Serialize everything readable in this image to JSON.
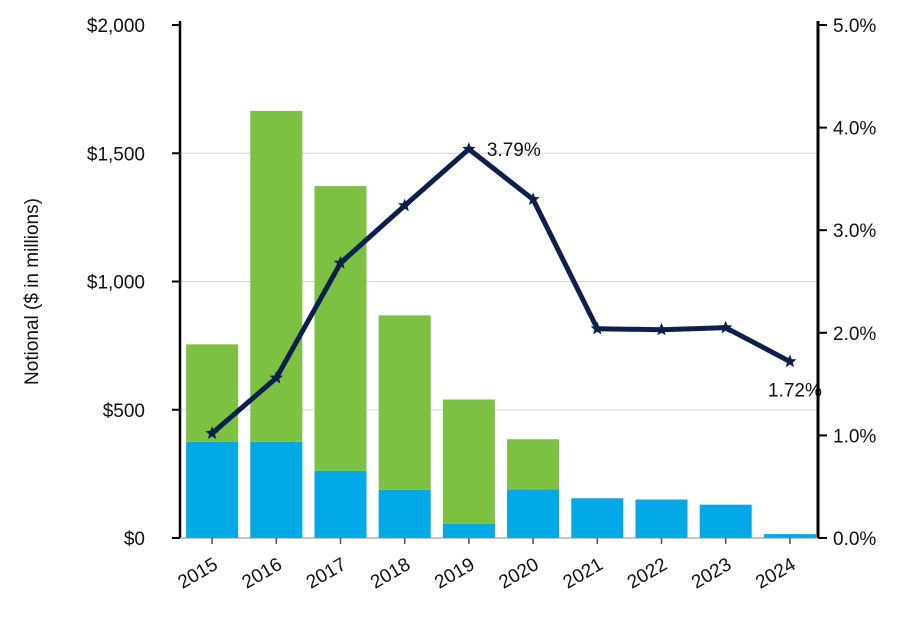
{
  "chart_data": {
    "type": "bar",
    "categories": [
      "2015",
      "2016",
      "2017",
      "2018",
      "2019",
      "2020",
      "2021",
      "2022",
      "2023",
      "2024"
    ],
    "series": [
      {
        "kind": "bar",
        "axis": "left",
        "color": "#00a9e6",
        "values": [
          375,
          375,
          262,
          188,
          55,
          190,
          155,
          150,
          130,
          15
        ]
      },
      {
        "kind": "bar",
        "axis": "left",
        "color": "#7dc142",
        "values": [
          380,
          1290,
          1110,
          680,
          485,
          195,
          0,
          0,
          0,
          0
        ]
      },
      {
        "kind": "line",
        "axis": "right",
        "color": "#0d1f4d",
        "values": [
          1.02,
          1.56,
          2.68,
          3.24,
          3.79,
          3.3,
          2.04,
          2.03,
          2.05,
          1.72
        ]
      }
    ],
    "y_left": {
      "label": "Notional ($ in millions)",
      "min": 0,
      "max": 2000,
      "ticks": [
        "$0",
        "$500",
        "$1,000",
        "$1,500",
        "$2,000"
      ]
    },
    "y_right": {
      "min": 0,
      "max": 5,
      "ticks": [
        "0.0%",
        "1.0%",
        "2.0%",
        "3.0%",
        "4.0%",
        "5.0%"
      ]
    },
    "annotations": [
      {
        "text": "3.79%",
        "category": "2019"
      },
      {
        "text": "1.72%",
        "category": "2024"
      }
    ],
    "grid": true
  }
}
